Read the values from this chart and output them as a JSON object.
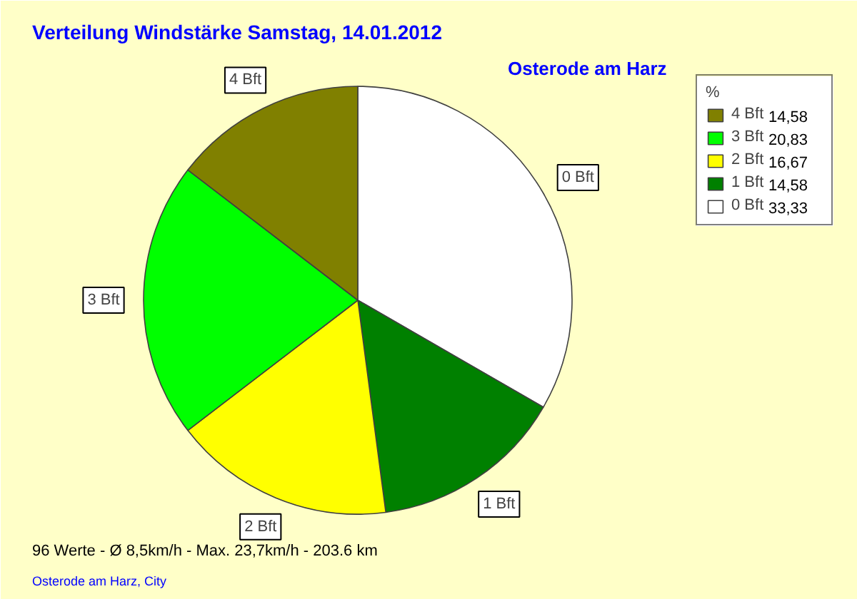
{
  "chart_data": {
    "type": "pie",
    "title": "Verteilung Windstärke  Samstag, 14.01.2012",
    "subtitle": "Osterode am Harz",
    "categories": [
      "0 Bft",
      "1 Bft",
      "2 Bft",
      "3 Bft",
      "4 Bft"
    ],
    "values": [
      33.33,
      14.58,
      16.67,
      20.83,
      14.58
    ],
    "value_labels": [
      "33,33",
      "14,58",
      "16,67",
      "20,83",
      "14,58"
    ],
    "colors": [
      "#ffffff",
      "#008000",
      "#ffff00",
      "#00ff00",
      "#808000"
    ],
    "legend": "top right",
    "legend_title": "%",
    "annotations": [
      "96 Werte   -   Ø 8,5km/h  -  Max. 23,7km/h   -   203.6 km",
      "Osterode am Harz, City"
    ]
  }
}
